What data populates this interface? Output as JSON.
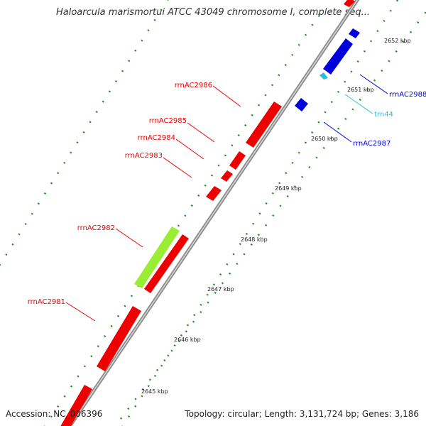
{
  "title": "Haloarcula marismortui ATCC 43049 chromosome I, complete seq...",
  "footer": {
    "accession": "Accession: NC_006396",
    "topology": "Topology: circular; Length: 3,131,724 bp; Genes: 3,186"
  },
  "colors": {
    "backbone": "#9a9a9a",
    "dots": "#228b22",
    "rrna": "#ee0000",
    "rrna_highlight": "#99ee33",
    "reverse_strand": "#0000dd",
    "trna": "#33bbdd"
  },
  "ticks": [
    {
      "label": "2645 kbp"
    },
    {
      "label": "2646 kbp"
    },
    {
      "label": "2647 kbp"
    },
    {
      "label": "2648 kbp"
    },
    {
      "label": "2649 kbp"
    },
    {
      "label": "2650 kbp"
    },
    {
      "label": "2651 kbp"
    },
    {
      "label": "2652 kbp"
    }
  ],
  "features": [
    {
      "id": "rrnAC2981",
      "label": "rrnAC2981",
      "strand": "forward",
      "type": "rRNA",
      "highlight": false
    },
    {
      "id": "rrnAC2982",
      "label": "rrnAC2982",
      "strand": "forward",
      "type": "rRNA",
      "highlight": true
    },
    {
      "id": "rrnAC2983",
      "label": "rrnAC2983",
      "strand": "forward",
      "type": "rRNA",
      "highlight": false
    },
    {
      "id": "rrnAC2984",
      "label": "rrnAC2984",
      "strand": "forward",
      "type": "rRNA",
      "highlight": false
    },
    {
      "id": "rrnAC2985",
      "label": "rrnAC2985",
      "strand": "forward",
      "type": "rRNA",
      "highlight": false
    },
    {
      "id": "rrnAC2986",
      "label": "rrnAC2986",
      "strand": "forward",
      "type": "rRNA",
      "highlight": false
    },
    {
      "id": "rrnAC2987",
      "label": "rrnAC2987",
      "strand": "reverse",
      "type": "rRNA",
      "highlight": false
    },
    {
      "id": "trn44",
      "label": "trn44",
      "strand": "reverse",
      "type": "tRNA",
      "highlight": false
    },
    {
      "id": "rrnAC2988",
      "label": "rrnAC2988",
      "strand": "reverse",
      "type": "rRNA",
      "highlight": false
    }
  ]
}
